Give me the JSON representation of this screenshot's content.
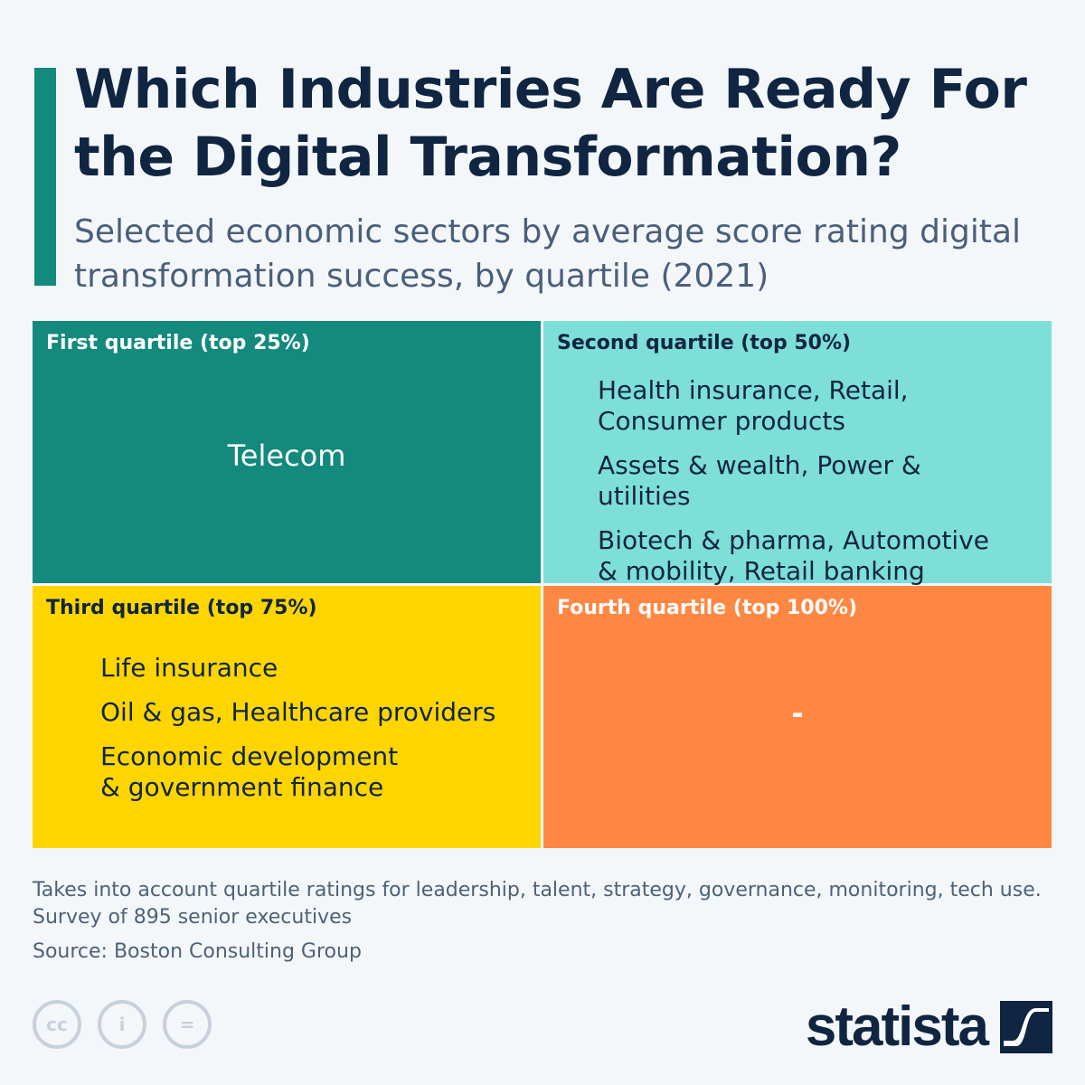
{
  "title": "Which Industries Are Ready For the Digital Transformation?",
  "subtitle": "Selected economic sectors by average score rating digital transformation success, by quartile (2021)",
  "chart_data": {
    "type": "table",
    "title": "Which Industries Are Ready For the Digital Transformation?",
    "quartiles": [
      {
        "label": "First quartile (top 25%)",
        "color": "#138a7d",
        "items": [
          "Telecom"
        ]
      },
      {
        "label": "Second quartile (top 50%)",
        "color": "#7ddfd7",
        "items": [
          "Health insurance, Retail, Consumer products",
          "Assets & wealth, Power & utilities",
          "Biotech & pharma, Automotive & mobility, Retail banking"
        ]
      },
      {
        "label": "Third quartile (top 75%)",
        "color": "#ffd500",
        "items": [
          "Life insurance",
          "Oil & gas, Healthcare providers",
          "Economic development & government finance"
        ]
      },
      {
        "label": "Fourth quartile (top 100%)",
        "color": "#ff8744",
        "items": [
          "-"
        ]
      }
    ]
  },
  "footer": {
    "note": "Takes into account quartile ratings for leadership, talent, strategy, governance, monitoring, tech use.",
    "survey": "Survey of 895 senior executives",
    "source": "Source: Boston Consulting Group"
  },
  "license_icons": [
    "cc-icon",
    "attribution-icon",
    "no-derivatives-icon"
  ],
  "logo": "statista"
}
